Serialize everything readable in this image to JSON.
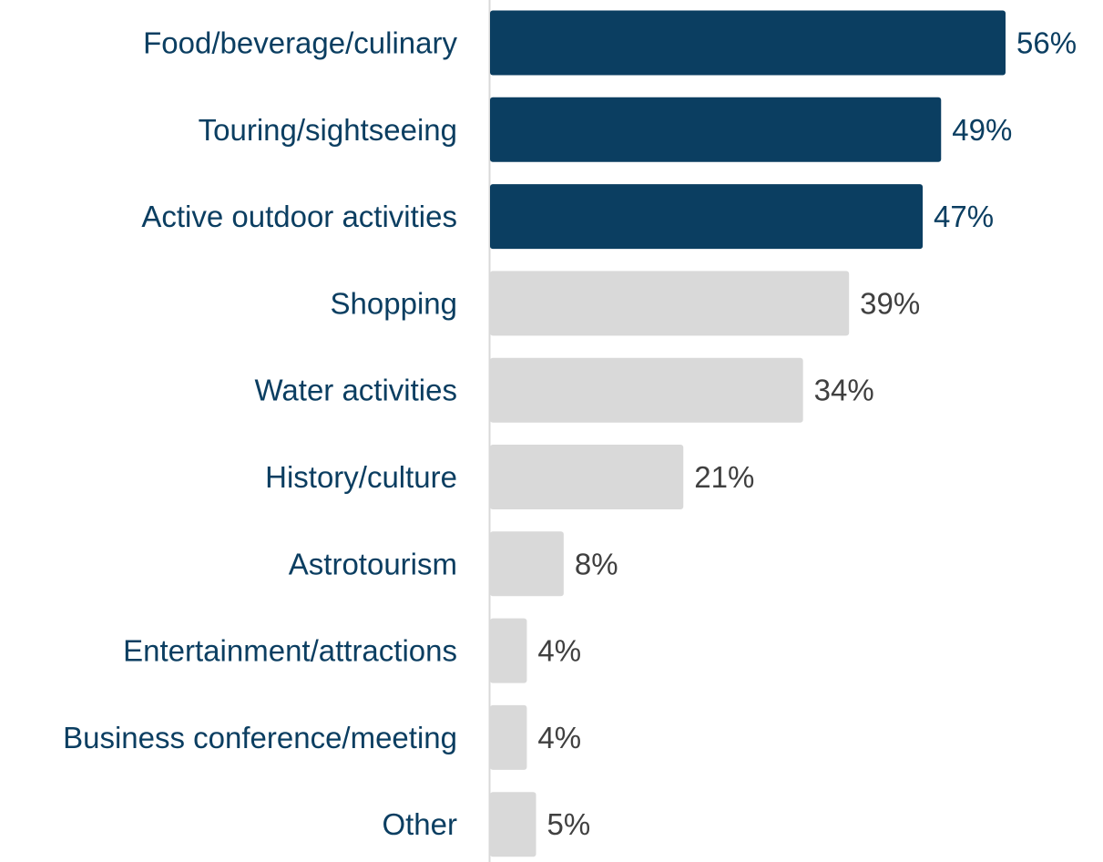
{
  "chart_data": {
    "type": "bar",
    "orientation": "horizontal",
    "title": "",
    "xlabel": "",
    "ylabel": "",
    "xlim": [
      0,
      56
    ],
    "grid": false,
    "legend": "none",
    "value_suffix": "%",
    "categories": [
      "Food/beverage/culinary",
      "Touring/sightseeing",
      "Active outdoor activities",
      "Shopping",
      "Water activities",
      "History/culture",
      "Astrotourism",
      "Entertainment/attractions",
      "Business conference/meeting",
      "Other"
    ],
    "values": [
      56,
      49,
      47,
      39,
      34,
      21,
      8,
      4,
      4,
      5
    ],
    "highlighted": [
      true,
      true,
      true,
      false,
      false,
      false,
      false,
      false,
      false,
      false
    ],
    "colors": {
      "highlight_bar": "#0b3e61",
      "default_bar": "#d9d9d9",
      "highlight_label": "#0b3e61",
      "default_label": "#404040",
      "category_label": "#0b3e61",
      "axis": "#d9d9d9"
    }
  }
}
